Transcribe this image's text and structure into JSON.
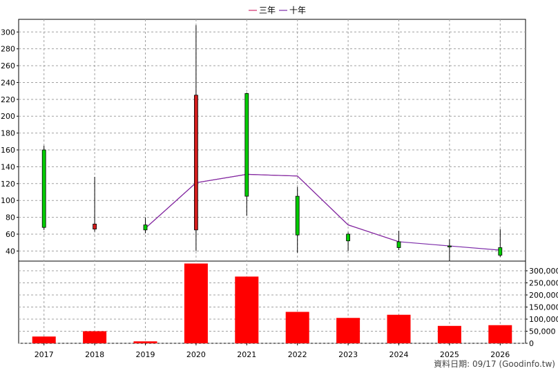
{
  "chart_data": [
    {
      "type": "candlestick",
      "categories": [
        "2017",
        "2018",
        "2019",
        "2020",
        "2021",
        "2022",
        "2023",
        "2024",
        "2025",
        "2026"
      ],
      "ohlc": [
        {
          "x": "2017",
          "open": 68,
          "close": 160,
          "high": 165,
          "low": 65
        },
        {
          "x": "2018",
          "open": 72,
          "close": 66,
          "high": 128,
          "low": 63
        },
        {
          "x": "2019",
          "open": 65,
          "close": 71,
          "high": 80,
          "low": 61
        },
        {
          "x": "2020",
          "open": 225,
          "close": 65,
          "high": 308,
          "low": 40
        },
        {
          "x": "2021",
          "open": 105,
          "close": 227,
          "high": 228,
          "low": 82
        },
        {
          "x": "2022",
          "open": 59,
          "close": 105,
          "high": 116,
          "low": 38
        },
        {
          "x": "2023",
          "open": 52,
          "close": 60,
          "high": 62,
          "low": 40
        },
        {
          "x": "2024",
          "open": 44,
          "close": 51,
          "high": 64,
          "low": 41
        },
        {
          "x": "2025",
          "open": 46,
          "close": 46,
          "high": 54,
          "low": 28
        },
        {
          "x": "2026",
          "open": 35,
          "close": 44,
          "high": 66,
          "low": 33
        }
      ],
      "series": [
        {
          "name": "三年",
          "color": "#d02a6b",
          "values": [
            null,
            null,
            67,
            121,
            131,
            129,
            71,
            51,
            null,
            null
          ]
        },
        {
          "name": "十年",
          "color": "#7b2aa8",
          "values": [
            null,
            null,
            67,
            121,
            131,
            129,
            71,
            51,
            46,
            41
          ]
        }
      ],
      "ylim": [
        28,
        315
      ],
      "yticks": [
        40,
        60,
        80,
        100,
        120,
        140,
        160,
        180,
        200,
        220,
        240,
        260,
        280,
        300
      ],
      "legend_position": "top-center",
      "grid": true
    },
    {
      "type": "bar",
      "categories": [
        "2017",
        "2018",
        "2019",
        "2020",
        "2021",
        "2022",
        "2023",
        "2024",
        "2025",
        "2026"
      ],
      "values": [
        28000,
        50000,
        8000,
        330000,
        276000,
        130000,
        105000,
        118000,
        72000,
        75000
      ],
      "color": "#ff0000",
      "ylim": [
        0,
        340000
      ],
      "yticks": [
        "0",
        "50,000",
        "100,000",
        "150,000",
        "200,000",
        "250,000",
        "300,000"
      ],
      "ytick_values": [
        0,
        50000,
        100000,
        150000,
        200000,
        250000,
        300000
      ],
      "grid": true
    }
  ],
  "footer": "資料日期: 09/17  (Goodinfo.tw)"
}
